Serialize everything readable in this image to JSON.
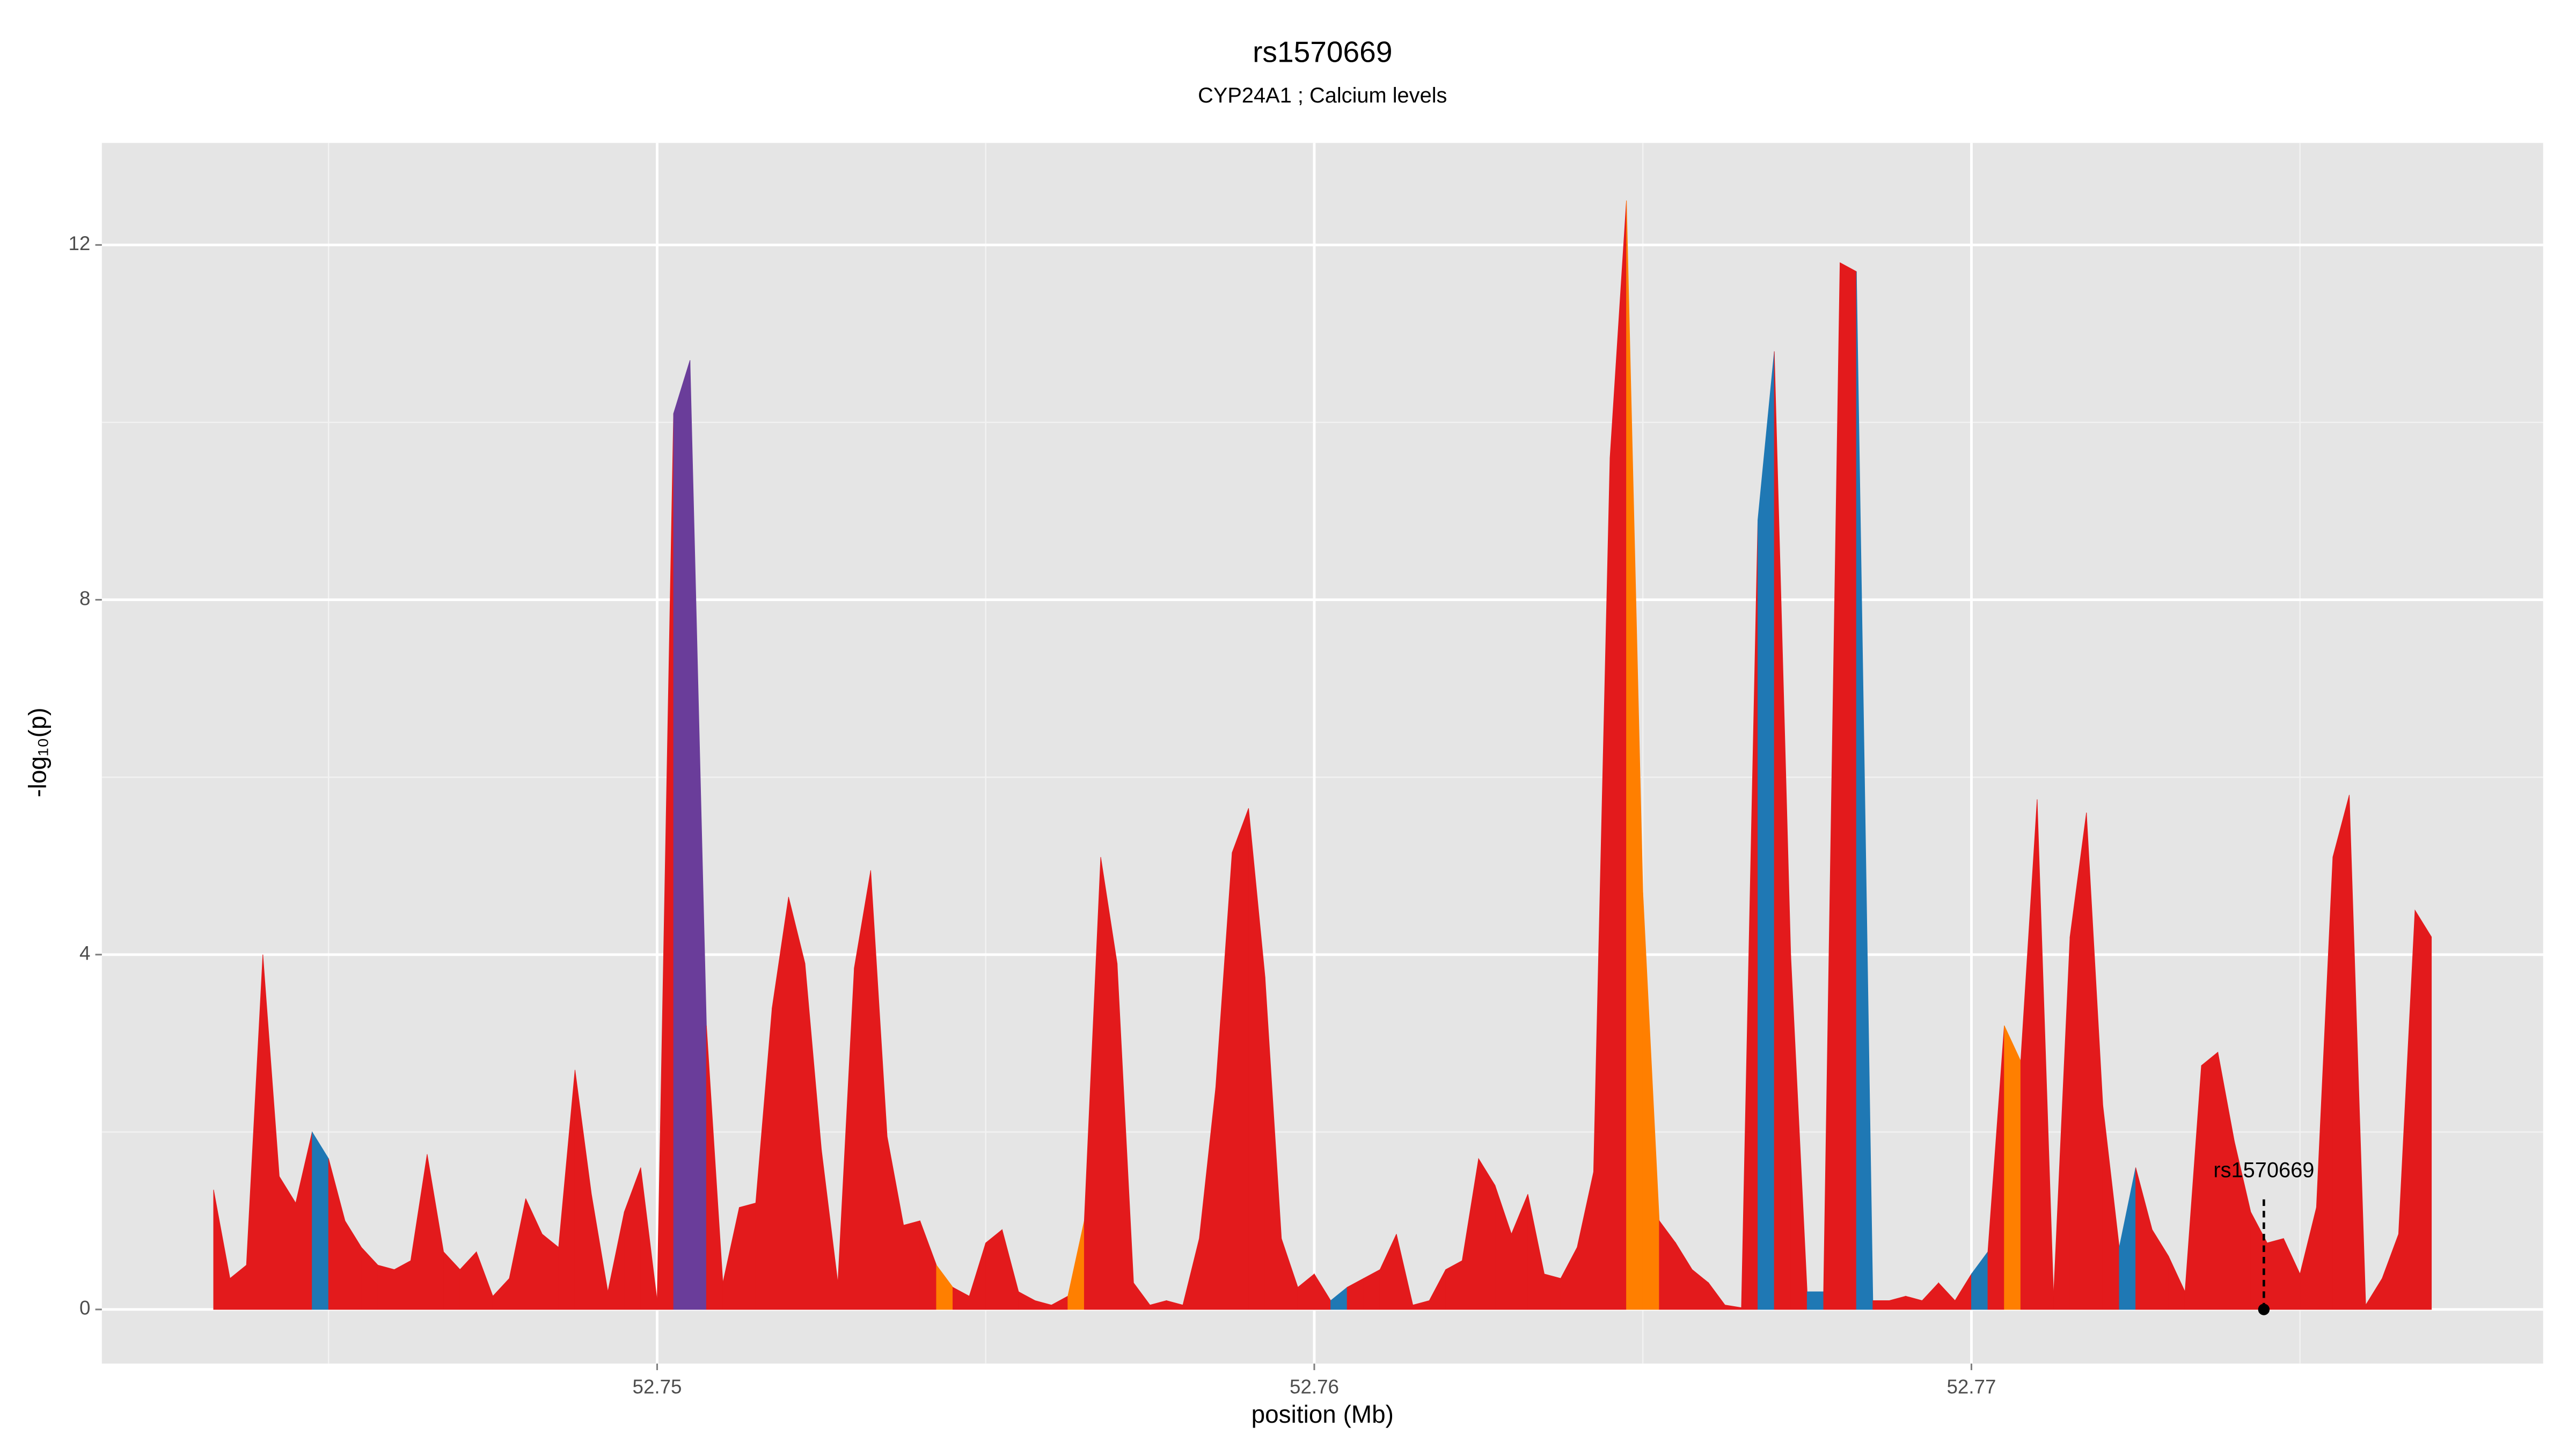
{
  "chart_data": {
    "type": "area",
    "title": "rs1570669",
    "subtitle": "CYP24A1 ; Calcium levels",
    "xlabel": "position (Mb)",
    "ylabel": "-log₁₀(p)",
    "xlim": [
      52.74155,
      52.7787
    ],
    "ylim": [
      -0.61,
      13.15
    ],
    "xticks": [
      52.75,
      52.76,
      52.77
    ],
    "yticks": [
      0,
      4,
      8,
      12
    ],
    "xminor": [
      52.745,
      52.755,
      52.765,
      52.775
    ],
    "yminor": [
      2,
      6,
      10
    ],
    "grid": true,
    "x": [
      52.74325,
      52.7435,
      52.74375,
      52.744,
      52.74425,
      52.7445,
      52.74475,
      52.745,
      52.74525,
      52.7455,
      52.74575,
      52.746,
      52.74625,
      52.7465,
      52.74675,
      52.747,
      52.74725,
      52.7475,
      52.74775,
      52.748,
      52.74825,
      52.7485,
      52.74875,
      52.749,
      52.74925,
      52.7495,
      52.74975,
      52.75,
      52.75025,
      52.7505,
      52.75075,
      52.751,
      52.75125,
      52.7515,
      52.75175,
      52.752,
      52.75225,
      52.7525,
      52.75275,
      52.753,
      52.75325,
      52.7535,
      52.75375,
      52.754,
      52.75425,
      52.7545,
      52.75475,
      52.755,
      52.75525,
      52.7555,
      52.75575,
      52.756,
      52.75625,
      52.7565,
      52.75675,
      52.757,
      52.75725,
      52.7575,
      52.75775,
      52.758,
      52.75825,
      52.7585,
      52.75875,
      52.759,
      52.75925,
      52.7595,
      52.75975,
      52.76,
      52.76025,
      52.7605,
      52.76075,
      52.761,
      52.76125,
      52.7615,
      52.76175,
      52.762,
      52.76225,
      52.7625,
      52.76275,
      52.763,
      52.76325,
      52.7635,
      52.76375,
      52.764,
      52.76425,
      52.7645,
      52.76475,
      52.765,
      52.76525,
      52.7655,
      52.76575,
      52.766,
      52.76625,
      52.7665,
      52.76675,
      52.767,
      52.76725,
      52.7675,
      52.76775,
      52.768,
      52.76825,
      52.7685,
      52.76875,
      52.769,
      52.76925,
      52.7695,
      52.76975,
      52.77,
      52.77025,
      52.7705,
      52.77075,
      52.771,
      52.77125,
      52.7715,
      52.77175,
      52.772,
      52.77225,
      52.7725,
      52.77275,
      52.773,
      52.77325,
      52.7735,
      52.77375,
      52.774,
      52.77425,
      52.7745,
      52.77475,
      52.775,
      52.77525,
      52.7755,
      52.77575,
      52.776,
      52.77625,
      52.7765,
      52.77675,
      52.777
    ],
    "values": [
      1.35,
      0.35,
      0.5,
      4.0,
      1.5,
      1.2,
      2.0,
      1.7,
      1.0,
      0.7,
      0.5,
      0.45,
      0.55,
      1.75,
      0.65,
      0.45,
      0.65,
      0.15,
      0.35,
      1.25,
      0.85,
      0.7,
      2.7,
      1.3,
      0.2,
      1.1,
      1.6,
      0.1,
      10.1,
      10.7,
      3.2,
      0.3,
      1.15,
      1.2,
      3.4,
      4.65,
      3.9,
      1.8,
      0.3,
      3.85,
      4.95,
      1.95,
      0.95,
      1.0,
      0.5,
      0.25,
      0.15,
      0.75,
      0.9,
      0.2,
      0.1,
      0.05,
      0.15,
      1.0,
      5.1,
      3.9,
      0.3,
      0.05,
      0.1,
      0.05,
      0.8,
      2.5,
      5.15,
      5.65,
      3.75,
      0.8,
      0.25,
      0.4,
      0.1,
      0.25,
      0.35,
      0.45,
      0.85,
      0.05,
      0.1,
      0.45,
      0.55,
      1.7,
      1.4,
      0.85,
      1.3,
      0.4,
      0.35,
      0.7,
      1.55,
      9.6,
      12.5,
      4.7,
      1.0,
      0.75,
      0.45,
      0.3,
      0.05,
      0.02,
      8.9,
      10.8,
      4.0,
      0.2,
      0.2,
      11.8,
      11.7,
      0.1,
      0.1,
      0.15,
      0.1,
      0.3,
      0.1,
      0.4,
      0.65,
      3.2,
      2.8,
      5.75,
      0.15,
      4.2,
      5.6,
      2.3,
      0.7,
      1.6,
      0.9,
      0.6,
      0.2,
      2.75,
      2.9,
      1.9,
      1.1,
      0.75,
      0.8,
      0.4,
      1.15,
      5.1,
      5.8,
      0.05,
      0.35,
      0.85,
      4.5,
      4.2
    ],
    "colors": [
      "#e31a1c",
      "#e31a1c",
      "#e31a1c",
      "#e31a1c",
      "#e31a1c",
      "#e31a1c",
      "#1f78b4",
      "#e31a1c",
      "#e31a1c",
      "#e31a1c",
      "#e31a1c",
      "#e31a1c",
      "#e31a1c",
      "#e31a1c",
      "#e31a1c",
      "#e31a1c",
      "#e31a1c",
      "#e31a1c",
      "#e31a1c",
      "#e31a1c",
      "#e31a1c",
      "#e31a1c",
      "#e31a1c",
      "#e31a1c",
      "#e31a1c",
      "#e31a1c",
      "#e31a1c",
      "#e31a1c",
      "#6a3d9a",
      "#6a3d9a",
      "#e31a1c",
      "#e31a1c",
      "#e31a1c",
      "#e31a1c",
      "#e31a1c",
      "#e31a1c",
      "#e31a1c",
      "#e31a1c",
      "#e31a1c",
      "#e31a1c",
      "#e31a1c",
      "#e31a1c",
      "#e31a1c",
      "#e31a1c",
      "#ff7f00",
      "#e31a1c",
      "#e31a1c",
      "#e31a1c",
      "#e31a1c",
      "#e31a1c",
      "#e31a1c",
      "#e31a1c",
      "#ff7f00",
      "#e31a1c",
      "#e31a1c",
      "#e31a1c",
      "#e31a1c",
      "#e31a1c",
      "#e31a1c",
      "#e31a1c",
      "#e31a1c",
      "#e31a1c",
      "#e31a1c",
      "#e31a1c",
      "#e31a1c",
      "#e31a1c",
      "#e31a1c",
      "#e31a1c",
      "#1f78b4",
      "#e31a1c",
      "#e31a1c",
      "#e31a1c",
      "#e31a1c",
      "#e31a1c",
      "#e31a1c",
      "#e31a1c",
      "#e31a1c",
      "#e31a1c",
      "#e31a1c",
      "#e31a1c",
      "#e31a1c",
      "#e31a1c",
      "#e31a1c",
      "#e31a1c",
      "#e31a1c",
      "#e31a1c",
      "#ff7f00",
      "#ff7f00",
      "#e31a1c",
      "#e31a1c",
      "#e31a1c",
      "#e31a1c",
      "#e31a1c",
      "#e31a1c",
      "#1f78b4",
      "#e31a1c",
      "#e31a1c",
      "#1f78b4",
      "#e31a1c",
      "#e31a1c",
      "#1f78b4",
      "#e31a1c",
      "#e31a1c",
      "#e31a1c",
      "#e31a1c",
      "#e31a1c",
      "#e31a1c",
      "#1f78b4",
      "#e31a1c",
      "#ff7f00",
      "#e31a1c",
      "#e31a1c",
      "#e31a1c",
      "#e31a1c",
      "#e31a1c",
      "#e31a1c",
      "#1f78b4",
      "#e31a1c",
      "#e31a1c",
      "#e31a1c",
      "#e31a1c",
      "#e31a1c",
      "#e31a1c",
      "#e31a1c",
      "#e31a1c",
      "#e31a1c",
      "#e31a1c",
      "#e31a1c",
      "#e31a1c",
      "#e31a1c",
      "#e31a1c",
      "#e31a1c",
      "#e31a1c",
      "#e31a1c",
      "#e31a1c",
      "#e31a1c"
    ],
    "annotation": {
      "label": "rs1570669",
      "x": 52.77445,
      "y": 0
    }
  }
}
